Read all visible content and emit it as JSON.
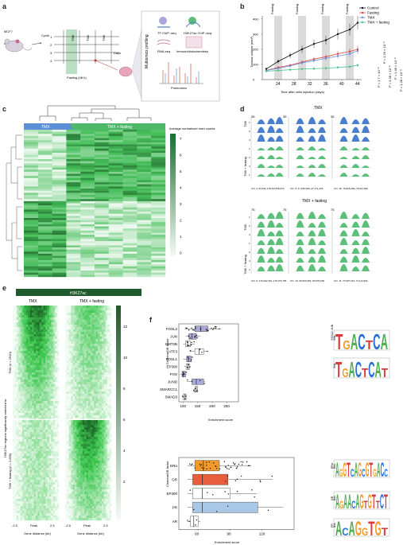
{
  "panels": {
    "a": {
      "letter": "a",
      "cell_line": "MCF7",
      "cycle_label": "Cycle",
      "cycles": [
        "1",
        "2",
        "3",
        "4"
      ],
      "tmx_label": "TMX",
      "days_label": "Days",
      "fasting_label": "Fasting (48 h)",
      "profiling_label": "Multiomics profiling",
      "assays": [
        "TF ChIP–seq",
        "H3K27ac ChIP–seq",
        "RNA-seq",
        "Immunohistochemistry"
      ],
      "proteomics_label": "Proteomics"
    },
    "b": {
      "letter": "b",
      "fasting_bands": [
        "Fasting",
        "Fasting",
        "Fasting",
        "Fasting"
      ],
      "legend": [
        "Control",
        "Fasting",
        "TMX",
        "TMX + fasting"
      ],
      "p_values": [
        "P = 1.7 × 10⁻⁸",
        "P = 1.29 × 10⁻⁹",
        "P = 3.28 × 10⁻⁶",
        "P = 1.46 × 10⁻⁹",
        "P = 1.28 × 10⁻⁸"
      ]
    },
    "c": {
      "letter": "c",
      "groups": [
        "TMX",
        "TMX + fasting"
      ],
      "colorbar_title": "Average normalized read counts",
      "colorbar_ticks": [
        "7",
        "6",
        "5",
        "4",
        "3",
        "2",
        "1",
        "0"
      ]
    },
    "d": {
      "letter": "d",
      "top_title": "TMX",
      "bottom_title": "TMX + fasting",
      "scale_top": [
        "35",
        "35",
        "35"
      ],
      "scale_bottom": [
        "75",
        "75",
        "75"
      ],
      "row_label_tmx": "TMX",
      "row_label_fast": "TMX + fasting",
      "row_nums": [
        "1",
        "2",
        "3"
      ],
      "coords_top": [
        "Chr. 2: 84,642,178–84,656,079",
        "Chr. 5: 47,169,966–47,171,236",
        "Chr. 15: 79,626,269–79,611,660"
      ],
      "coords_bottom": [
        "Chr. 6: 170,292,361–170,373,781",
        "Chr. 13: 60,660,351–60,679,630",
        "Chr. 11: 73,997,610–74,114,602"
      ]
    },
    "e": {
      "letter": "e",
      "mark": "H3K27ac",
      "cols": [
        "TMX",
        "TMX + fasting"
      ],
      "side_label": "H3K27ac regions significantly enriched in:",
      "row_labels": [
        "TMX (n = 2910)",
        "TMX + fasting (n = 2,859)"
      ],
      "xticks": [
        "-2.5",
        "Peak",
        "2.5"
      ],
      "xlabel": "Gene distance (kb)",
      "colorbar_ticks": [
        "12",
        "10",
        "8",
        "6",
        "4",
        "2"
      ]
    },
    "f": {
      "letter": "f",
      "ylabel": "CistromeDB factor",
      "xlabel": "Enrichment score",
      "logo_ylabel": "Bits"
    }
  },
  "chart_data": [
    {
      "type": "line",
      "panel": "b",
      "xlabel": "Time after cells injection (days)",
      "ylabel": "Tumour volume (mm³)",
      "x": [
        21,
        24,
        27,
        30,
        33,
        36,
        39,
        42,
        44
      ],
      "xticks": [
        24,
        28,
        32,
        36,
        40,
        44
      ],
      "yticks": [
        0,
        100,
        200,
        300,
        400
      ],
      "ylim": [
        0,
        420
      ],
      "series": [
        {
          "name": "Control",
          "color": "#111111",
          "values": [
            70,
            120,
            160,
            200,
            235,
            260,
            300,
            330,
            375
          ]
        },
        {
          "name": "Fasting",
          "color": "#e0403a",
          "values": [
            60,
            80,
            95,
            115,
            135,
            150,
            170,
            185,
            200
          ]
        },
        {
          "name": "TMX",
          "color": "#6a8ed8",
          "values": [
            60,
            75,
            90,
            110,
            125,
            140,
            155,
            170,
            190
          ]
        },
        {
          "name": "TMX + fasting",
          "color": "#4cc38a",
          "values": [
            55,
            60,
            65,
            70,
            72,
            75,
            80,
            85,
            95
          ]
        }
      ]
    },
    {
      "type": "box",
      "panel": "f-top",
      "categories": [
        "FOSL2",
        "JUN",
        "KMT2B",
        "ATF3",
        "FOSL1",
        "EP300",
        "FOS",
        "JUND",
        "SMARCC1",
        "SMAD3"
      ],
      "xticks": [
        100,
        150,
        200,
        250
      ],
      "xlim": [
        85,
        290
      ],
      "boxes": [
        {
          "q1": 140,
          "med": 160,
          "q3": 185,
          "lo": 105,
          "hi": 230,
          "color": "#a9a8d8"
        },
        {
          "q1": 120,
          "med": 130,
          "q3": 145,
          "lo": 108,
          "hi": 160,
          "color": "#a9a8d8"
        },
        {
          "q1": 108,
          "med": 115,
          "q3": 125,
          "lo": 100,
          "hi": 140,
          "color": "#ffffff"
        },
        {
          "q1": 140,
          "med": 155,
          "q3": 170,
          "lo": 120,
          "hi": 185,
          "color": "#ffffff"
        },
        {
          "q1": 112,
          "med": 118,
          "q3": 128,
          "lo": 100,
          "hi": 132,
          "color": "#a9a8d8"
        },
        {
          "q1": 110,
          "med": 116,
          "q3": 122,
          "lo": 104,
          "hi": 126,
          "color": "#ffffff"
        },
        {
          "q1": 96,
          "med": 100,
          "q3": 108,
          "lo": 90,
          "hi": 112,
          "color": "#a9a8d8"
        },
        {
          "q1": 130,
          "med": 145,
          "q3": 170,
          "lo": 112,
          "hi": 175,
          "color": "#a9a8d8"
        },
        {
          "q1": 140,
          "med": 145,
          "q3": 150,
          "lo": 135,
          "hi": 150,
          "color": "#ffffff"
        },
        {
          "q1": 100,
          "med": 105,
          "q3": 110,
          "lo": 98,
          "hi": 112,
          "color": "#ffffff"
        }
      ]
    },
    {
      "type": "box",
      "panel": "f-bottom",
      "categories": [
        "ERα",
        "GR",
        "EP300",
        "PR",
        "AR"
      ],
      "xticks": [
        60,
        90,
        120
      ],
      "xlim": [
        42,
        150
      ],
      "boxes": [
        {
          "q1": 57,
          "med": 65,
          "q3": 80,
          "lo": 50,
          "hi": 110,
          "color": "#f39b2a"
        },
        {
          "q1": 55,
          "med": 64,
          "q3": 88,
          "lo": 50,
          "hi": 130,
          "color": "#e85e3c"
        },
        {
          "q1": 55,
          "med": 64,
          "q3": 90,
          "lo": 50,
          "hi": 115,
          "color": "#ffffff"
        },
        {
          "q1": 55,
          "med": 64,
          "q3": 116,
          "lo": 50,
          "hi": 140,
          "color": "#a9c8e6"
        },
        {
          "q1": 53,
          "med": 56,
          "q3": 60,
          "lo": 50,
          "hi": 62,
          "color": "#ffffff"
        }
      ]
    }
  ],
  "motifs": [
    {
      "name": "FOSL2::JUN",
      "seq": "TGACTCA"
    },
    {
      "name": "",
      "seq": "TGACTCAT"
    },
    {
      "name": "ERα",
      "seq": "AGGTCAGCGTGACC"
    },
    {
      "name": "GR",
      "seq": "AGAACAGTGTTCT"
    },
    {
      "name": "PR",
      "seq": "ACAGGTGT"
    }
  ],
  "colors": {
    "green_dark": "#1e6b30",
    "green_mid": "#4caa5e",
    "blue_track": "#4a7fcf",
    "green_track": "#5cbf7a",
    "tmx_bar": "#5b8fd6",
    "fast_bar": "#4eb86a"
  }
}
